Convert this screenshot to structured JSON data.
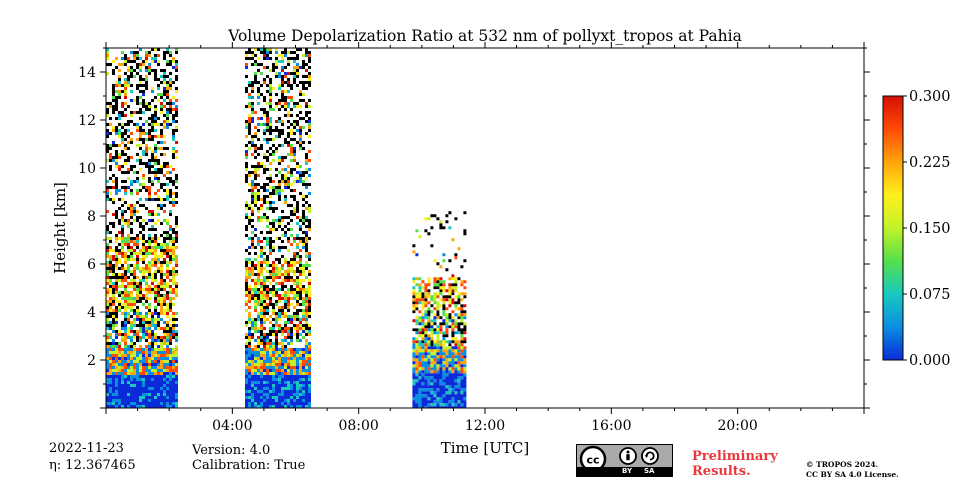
{
  "chart_data": {
    "type": "heatmap",
    "title": "Volume Depolarization Ratio at 532 nm of pollyxt_tropos at Pahia",
    "xlabel": "Time [UTC]",
    "ylabel": "Height [km]",
    "x_unit": "hours UTC",
    "xlim": [
      0,
      24
    ],
    "ylim": [
      0,
      15
    ],
    "x_ticks": [
      {
        "value": 4,
        "label": "04:00"
      },
      {
        "value": 8,
        "label": "08:00"
      },
      {
        "value": 12,
        "label": "12:00"
      },
      {
        "value": 16,
        "label": "16:00"
      },
      {
        "value": 20,
        "label": "20:00"
      }
    ],
    "y_ticks": [
      {
        "value": 2,
        "label": "2"
      },
      {
        "value": 4,
        "label": "4"
      },
      {
        "value": 6,
        "label": "6"
      },
      {
        "value": 8,
        "label": "8"
      },
      {
        "value": 10,
        "label": "10"
      },
      {
        "value": 12,
        "label": "12"
      },
      {
        "value": 14,
        "label": "14"
      }
    ],
    "colorbar": {
      "min": 0.0,
      "max": 0.3,
      "ticks": [
        "0.000",
        "0.075",
        "0.150",
        "0.225",
        "0.300"
      ],
      "colors": [
        "#0b2bd8",
        "#0a8ee0",
        "#19c9c0",
        "#55e04a",
        "#c2f22a",
        "#fff01c",
        "#ffa40c",
        "#ff4a06",
        "#d50f06"
      ]
    },
    "data_blocks": [
      {
        "start_hour": 0.0,
        "end_hour": 2.2,
        "noise_top_km": 15.0,
        "dense_below_km": 7.2
      },
      {
        "start_hour": 4.4,
        "end_hour": 6.4,
        "noise_top_km": 15.0,
        "dense_below_km": 6.2
      },
      {
        "start_hour": 9.7,
        "end_hour": 11.4,
        "noise_top_km": 8.2,
        "dense_below_km": 5.5
      }
    ]
  },
  "footer": {
    "date": "2022-11-23",
    "eta": "η: 12.367465",
    "version": "Version: 4.0",
    "calibration": "Calibration: True",
    "license_by": "BY",
    "license_sa": "SA",
    "preliminary_line1": "Preliminary",
    "preliminary_line2": "Results.",
    "copyright_line1": "© TROPOS 2024.",
    "copyright_line2": "CC BY SA 4.0 License."
  }
}
